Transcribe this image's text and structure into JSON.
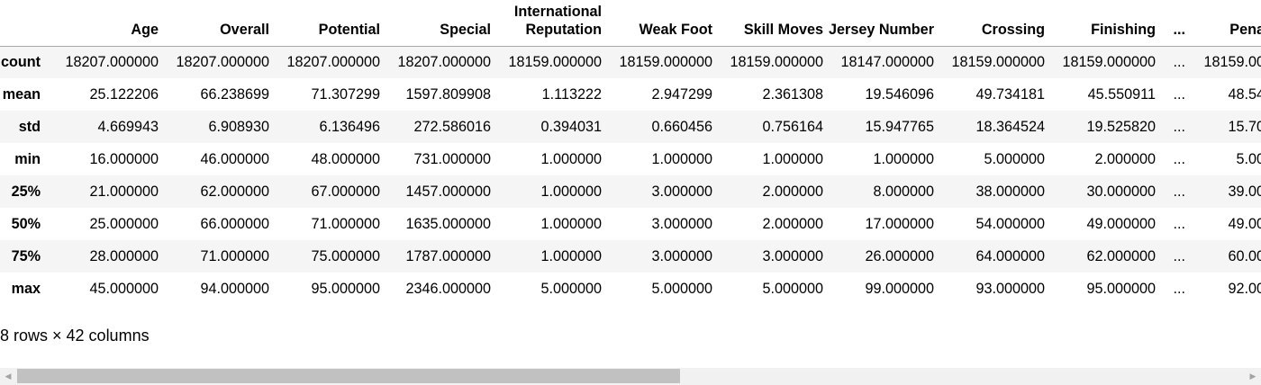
{
  "table": {
    "columns": [
      "",
      "Age",
      "Overall",
      "Potential",
      "Special",
      "International Reputation",
      "Weak Foot",
      "Skill Moves",
      "Jersey Number",
      "Crossing",
      "Finishing",
      "...",
      "Pena"
    ],
    "rows": [
      {
        "label": "count",
        "values": [
          "18207.000000",
          "18207.000000",
          "18207.000000",
          "18207.000000",
          "18159.000000",
          "18159.000000",
          "18159.000000",
          "18147.000000",
          "18159.000000",
          "18159.000000",
          "...",
          "18159.00"
        ]
      },
      {
        "label": "mean",
        "values": [
          "25.122206",
          "66.238699",
          "71.307299",
          "1597.809908",
          "1.113222",
          "2.947299",
          "2.361308",
          "19.546096",
          "49.734181",
          "45.550911",
          "...",
          "48.54"
        ]
      },
      {
        "label": "std",
        "values": [
          "4.669943",
          "6.908930",
          "6.136496",
          "272.586016",
          "0.394031",
          "0.660456",
          "0.756164",
          "15.947765",
          "18.364524",
          "19.525820",
          "...",
          "15.70"
        ]
      },
      {
        "label": "min",
        "values": [
          "16.000000",
          "46.000000",
          "48.000000",
          "731.000000",
          "1.000000",
          "1.000000",
          "1.000000",
          "1.000000",
          "5.000000",
          "2.000000",
          "...",
          "5.00"
        ]
      },
      {
        "label": "25%",
        "values": [
          "21.000000",
          "62.000000",
          "67.000000",
          "1457.000000",
          "1.000000",
          "3.000000",
          "2.000000",
          "8.000000",
          "38.000000",
          "30.000000",
          "...",
          "39.00"
        ]
      },
      {
        "label": "50%",
        "values": [
          "25.000000",
          "66.000000",
          "71.000000",
          "1635.000000",
          "1.000000",
          "3.000000",
          "2.000000",
          "17.000000",
          "54.000000",
          "49.000000",
          "...",
          "49.00"
        ]
      },
      {
        "label": "75%",
        "values": [
          "28.000000",
          "71.000000",
          "75.000000",
          "1787.000000",
          "1.000000",
          "3.000000",
          "3.000000",
          "26.000000",
          "64.000000",
          "62.000000",
          "...",
          "60.00"
        ]
      },
      {
        "label": "max",
        "values": [
          "45.000000",
          "94.000000",
          "95.000000",
          "2346.000000",
          "5.000000",
          "5.000000",
          "5.000000",
          "99.000000",
          "93.000000",
          "95.000000",
          "...",
          "92.00"
        ]
      }
    ]
  },
  "footer": "8 rows × 42 columns",
  "scrollbar": {
    "left_icon": "scroll-left-arrow-icon",
    "right_icon": "scroll-right-arrow-icon",
    "left_glyph": "◀",
    "right_glyph": "▶",
    "thumb_position": 0.0
  }
}
